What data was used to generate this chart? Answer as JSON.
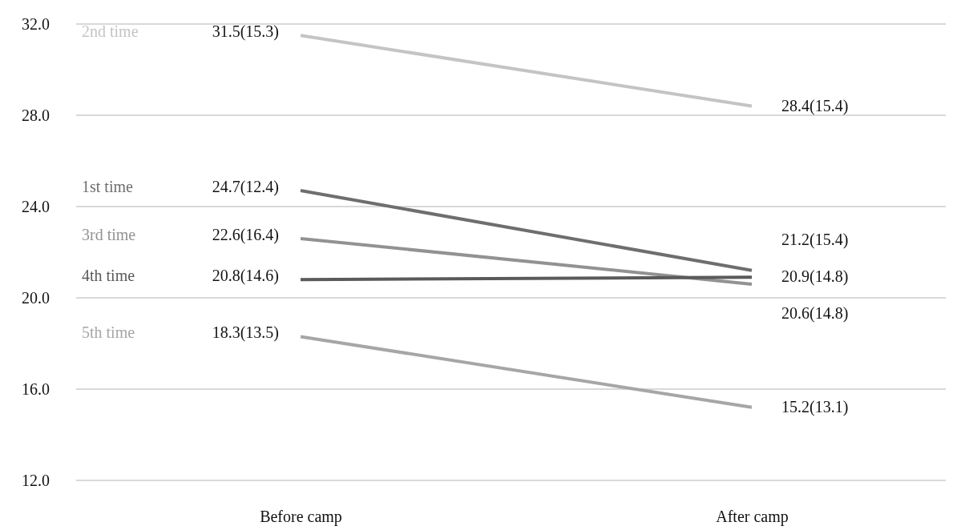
{
  "chart_data": {
    "type": "line",
    "categories": [
      "Before camp",
      "After camp"
    ],
    "series": [
      {
        "name": "2nd time",
        "color": "#c4c4c4",
        "values": [
          31.5,
          28.4
        ],
        "value_labels": [
          "31.5(15.3)",
          "28.4(15.4)"
        ]
      },
      {
        "name": "1st time",
        "color": "#6e6e6e",
        "values": [
          24.7,
          21.2
        ],
        "value_labels": [
          "24.7(12.4)",
          "21.2(15.4)"
        ]
      },
      {
        "name": "3rd time",
        "color": "#929292",
        "values": [
          22.6,
          20.6
        ],
        "value_labels": [
          "22.6(16.4)",
          "20.6(14.8)"
        ]
      },
      {
        "name": "4th time",
        "color": "#5a5a5a",
        "values": [
          20.8,
          20.9
        ],
        "value_labels": [
          "20.8(14.6)",
          "20.9(14.8)"
        ]
      },
      {
        "name": "5th time",
        "color": "#a6a6a6",
        "values": [
          18.3,
          15.2
        ],
        "value_labels": [
          "18.3(13.5)",
          "15.2(13.1)"
        ]
      }
    ],
    "ylim": [
      12,
      32
    ],
    "yticks": [
      {
        "value": 12,
        "label": "12.0"
      },
      {
        "value": 16,
        "label": "16.0"
      },
      {
        "value": 20,
        "label": "20.0"
      },
      {
        "value": 24,
        "label": "24.0"
      },
      {
        "value": 28,
        "label": "28.0"
      },
      {
        "value": 32,
        "label": "32.0"
      }
    ],
    "grid": "y",
    "marker": "none",
    "line_style": "solid"
  }
}
